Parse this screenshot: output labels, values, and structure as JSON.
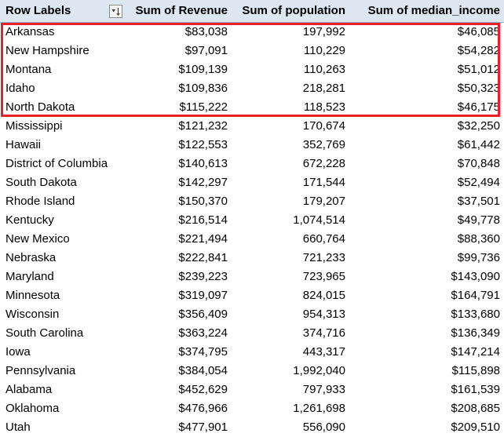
{
  "headers": {
    "row_labels": "Row Labels",
    "revenue": "Sum of Revenue",
    "population": "Sum of population",
    "median_income": "Sum of median_income",
    "filter_icon": "sort-filter-icon"
  },
  "colors": {
    "header_bg": "#dde7f2",
    "highlight_border": "#e8202a"
  },
  "rows": [
    {
      "label": "Arkansas",
      "revenue": "$83,038",
      "population": "197,992",
      "median_income": "$46,085"
    },
    {
      "label": "New Hampshire",
      "revenue": "$97,091",
      "population": "110,229",
      "median_income": "$54,282"
    },
    {
      "label": "Montana",
      "revenue": "$109,139",
      "population": "110,263",
      "median_income": "$51,012"
    },
    {
      "label": "Idaho",
      "revenue": "$109,836",
      "population": "218,281",
      "median_income": "$50,323"
    },
    {
      "label": "North Dakota",
      "revenue": "$115,222",
      "population": "118,523",
      "median_income": "$46,175"
    },
    {
      "label": "Mississippi",
      "revenue": "$121,232",
      "population": "170,674",
      "median_income": "$32,250"
    },
    {
      "label": "Hawaii",
      "revenue": "$122,553",
      "population": "352,769",
      "median_income": "$61,442"
    },
    {
      "label": "District of Columbia",
      "revenue": "$140,613",
      "population": "672,228",
      "median_income": "$70,848"
    },
    {
      "label": "South Dakota",
      "revenue": "$142,297",
      "population": "171,544",
      "median_income": "$52,494"
    },
    {
      "label": "Rhode Island",
      "revenue": "$150,370",
      "population": "179,207",
      "median_income": "$37,501"
    },
    {
      "label": "Kentucky",
      "revenue": "$216,514",
      "population": "1,074,514",
      "median_income": "$49,778"
    },
    {
      "label": "New Mexico",
      "revenue": "$221,494",
      "population": "660,764",
      "median_income": "$88,360"
    },
    {
      "label": "Nebraska",
      "revenue": "$222,841",
      "population": "721,233",
      "median_income": "$99,736"
    },
    {
      "label": "Maryland",
      "revenue": "$239,223",
      "population": "723,965",
      "median_income": "$143,090"
    },
    {
      "label": "Minnesota",
      "revenue": "$319,097",
      "population": "824,015",
      "median_income": "$164,791"
    },
    {
      "label": "Wisconsin",
      "revenue": "$356,409",
      "population": "954,313",
      "median_income": "$133,680"
    },
    {
      "label": "South Carolina",
      "revenue": "$363,224",
      "population": "374,716",
      "median_income": "$136,349"
    },
    {
      "label": "Iowa",
      "revenue": "$374,795",
      "population": "443,317",
      "median_income": "$147,214"
    },
    {
      "label": "Pennsylvania",
      "revenue": "$384,054",
      "population": "1,992,040",
      "median_income": "$115,898"
    },
    {
      "label": "Alabama",
      "revenue": "$452,629",
      "population": "797,933",
      "median_income": "$161,539"
    },
    {
      "label": "Oklahoma",
      "revenue": "$476,966",
      "population": "1,261,698",
      "median_income": "$208,685"
    },
    {
      "label": "Utah",
      "revenue": "$477,901",
      "population": "556,090",
      "median_income": "$209,510"
    }
  ]
}
